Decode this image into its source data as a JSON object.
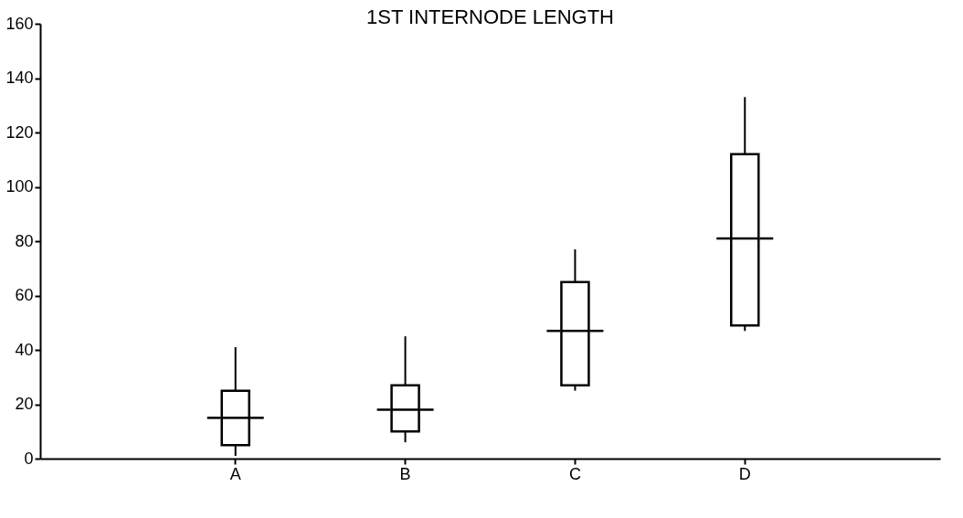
{
  "chart_data": {
    "type": "box",
    "title": "1ST INTERNODE LENGTH",
    "categories": [
      "A",
      "B",
      "C",
      "D"
    ],
    "boxes": [
      {
        "low": 1,
        "q1": 5,
        "median": 15,
        "q3": 25,
        "high": 41
      },
      {
        "low": 6,
        "q1": 10,
        "median": 18,
        "q3": 27,
        "high": 45
      },
      {
        "low": 25,
        "q1": 27,
        "median": 47,
        "q3": 65,
        "high": 77
      },
      {
        "low": 47,
        "q1": 49,
        "median": 81,
        "q3": 112,
        "high": 133
      }
    ],
    "color": "#ffffff",
    "ylim": [
      0,
      160
    ],
    "yticks": [
      0,
      20,
      40,
      60,
      80,
      100,
      120,
      140,
      160
    ],
    "grid": false
  }
}
